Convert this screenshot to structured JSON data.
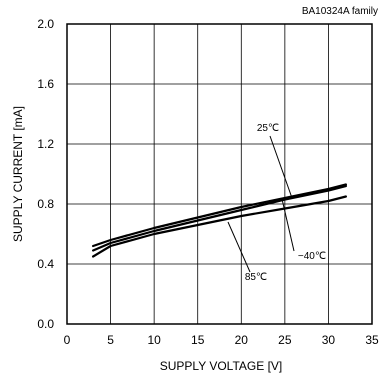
{
  "chart_data": {
    "type": "line",
    "title": "",
    "family_label": "BA10324A family",
    "xlabel": "SUPPLY VOLTAGE [V]",
    "ylabel": "SUPPLY CURRENT [mA]",
    "xlim": [
      0,
      35
    ],
    "ylim": [
      0,
      2.0
    ],
    "x_ticks": [
      "0",
      "5",
      "10",
      "15",
      "20",
      "25",
      "30",
      "35"
    ],
    "y_ticks": [
      "0.0",
      "0.4",
      "0.8",
      "1.2",
      "1.6",
      "2.0"
    ],
    "grid": true,
    "series": [
      {
        "name": "25℃",
        "x": [
          3,
          5,
          10,
          15,
          20,
          25,
          30,
          32
        ],
        "y": [
          0.49,
          0.54,
          0.62,
          0.69,
          0.76,
          0.83,
          0.89,
          0.92
        ]
      },
      {
        "name": "-40℃",
        "x": [
          3,
          5,
          10,
          15,
          20,
          25,
          30,
          32
        ],
        "y": [
          0.52,
          0.56,
          0.64,
          0.71,
          0.78,
          0.84,
          0.9,
          0.93
        ]
      },
      {
        "name": "85℃",
        "x": [
          3,
          5,
          10,
          15,
          20,
          25,
          30,
          32
        ],
        "y": [
          0.45,
          0.52,
          0.6,
          0.66,
          0.72,
          0.77,
          0.82,
          0.85
        ]
      }
    ],
    "annotations": [
      {
        "text": "25℃",
        "series": "25℃"
      },
      {
        "text": "−40℃",
        "series": "-40℃"
      },
      {
        "text": "85℃",
        "series": "85℃"
      }
    ]
  }
}
